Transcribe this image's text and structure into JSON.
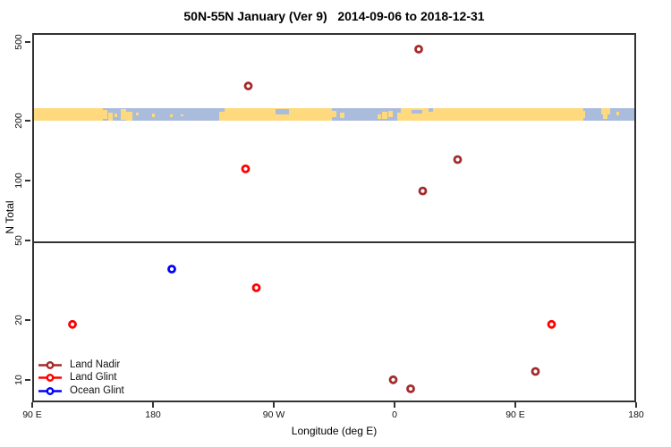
{
  "chart_data": {
    "type": "scatter",
    "title": "50N-55N January (Ver 9)   2014-09-06 to 2018-12-31",
    "xlabel": "Longitude (deg E)",
    "ylabel": "N Total",
    "x_axis": {
      "min": 90,
      "max": 540,
      "ticks": [
        {
          "value": 90,
          "label": "90 E"
        },
        {
          "value": 180,
          "label": "180"
        },
        {
          "value": 270,
          "label": "90 W"
        },
        {
          "value": 360,
          "label": "0"
        },
        {
          "value": 450,
          "label": "90 E"
        },
        {
          "value": 540,
          "label": "180"
        }
      ]
    },
    "y_axis": {
      "scale": "log",
      "min": 7.7,
      "max": 554,
      "ticks": [
        10,
        20,
        50,
        100,
        200,
        500
      ]
    },
    "reference_line": {
      "value": 50
    },
    "series": [
      {
        "name": "Land Nadir",
        "color": "#A52A2A",
        "points": [
          {
            "lon": 251,
            "n": 300
          },
          {
            "lon": 378,
            "n": 460
          },
          {
            "lon": 381,
            "n": 89
          },
          {
            "lon": 407,
            "n": 128
          },
          {
            "lon": 359,
            "n": 10
          },
          {
            "lon": 372,
            "n": 9
          },
          {
            "lon": 465,
            "n": 11
          }
        ]
      },
      {
        "name": "Land Glint",
        "color": "#FF0000",
        "points": [
          {
            "lon": 120,
            "n": 19
          },
          {
            "lon": 249,
            "n": 115
          },
          {
            "lon": 257,
            "n": 29
          },
          {
            "lon": 477,
            "n": 19
          }
        ]
      },
      {
        "name": "Ocean Glint",
        "color": "#0000FF",
        "points": [
          {
            "lon": 194,
            "n": 36
          }
        ]
      }
    ],
    "map_band": {
      "value_range": [
        206,
        236
      ],
      "ocean_color": "#A9BCDC",
      "land_color": "#FFD97E",
      "land_segments": [
        {
          "from": 90,
          "to": 141
        },
        {
          "from": 232,
          "to": 312
        },
        {
          "from": 363,
          "to": 499
        }
      ],
      "patches": [
        {
          "from": 141,
          "to": 144.5,
          "type": "land",
          "top": 0.15,
          "bottom": 0.85
        },
        {
          "from": 145.5,
          "to": 148.5,
          "type": "land",
          "top": 0.35,
          "bottom": 1.0
        },
        {
          "from": 150,
          "to": 152,
          "type": "land",
          "top": 0.4,
          "bottom": 0.75
        },
        {
          "from": 154.5,
          "to": 158.5,
          "type": "land",
          "top": 0.05,
          "bottom": 0.95
        },
        {
          "from": 158.5,
          "to": 163,
          "type": "land",
          "top": 0.3,
          "bottom": 1.0
        },
        {
          "from": 166,
          "to": 168,
          "type": "land",
          "top": 0.35,
          "bottom": 0.6
        },
        {
          "from": 178,
          "to": 180,
          "type": "land",
          "top": 0.45,
          "bottom": 0.7
        },
        {
          "from": 191,
          "to": 193,
          "type": "land",
          "top": 0.5,
          "bottom": 0.72
        },
        {
          "from": 199.5,
          "to": 201.5,
          "type": "land",
          "top": 0.48,
          "bottom": 0.68
        },
        {
          "from": 228,
          "to": 232,
          "type": "land",
          "top": 0.25,
          "bottom": 1.0
        },
        {
          "from": 270,
          "to": 280,
          "type": "ocean",
          "top": 0.05,
          "bottom": 0.5
        },
        {
          "from": 312,
          "to": 315.5,
          "type": "land",
          "top": 0.2,
          "bottom": 0.75
        },
        {
          "from": 318,
          "to": 321,
          "type": "land",
          "top": 0.35,
          "bottom": 0.8
        },
        {
          "from": 346,
          "to": 348.5,
          "type": "land",
          "top": 0.5,
          "bottom": 0.85
        },
        {
          "from": 349.5,
          "to": 353,
          "type": "land",
          "top": 0.3,
          "bottom": 0.9
        },
        {
          "from": 354,
          "to": 357.5,
          "type": "land",
          "top": 0.2,
          "bottom": 0.7
        },
        {
          "from": 360.5,
          "to": 363,
          "type": "land",
          "top": 0.35,
          "bottom": 1.0
        },
        {
          "from": 371,
          "to": 379,
          "type": "ocean",
          "top": 0.1,
          "bottom": 0.45
        },
        {
          "from": 384,
          "to": 387,
          "type": "ocean",
          "top": 0.0,
          "bottom": 0.3
        },
        {
          "from": 497,
          "to": 500.5,
          "type": "land",
          "top": 0.2,
          "bottom": 0.8
        },
        {
          "from": 512.5,
          "to": 519,
          "type": "land",
          "top": 0.0,
          "bottom": 0.5
        },
        {
          "from": 514,
          "to": 517.5,
          "type": "land",
          "top": 0.5,
          "bottom": 0.85
        },
        {
          "from": 524,
          "to": 526,
          "type": "land",
          "top": 0.3,
          "bottom": 0.55
        }
      ]
    },
    "legend_position": "bottom-left"
  }
}
